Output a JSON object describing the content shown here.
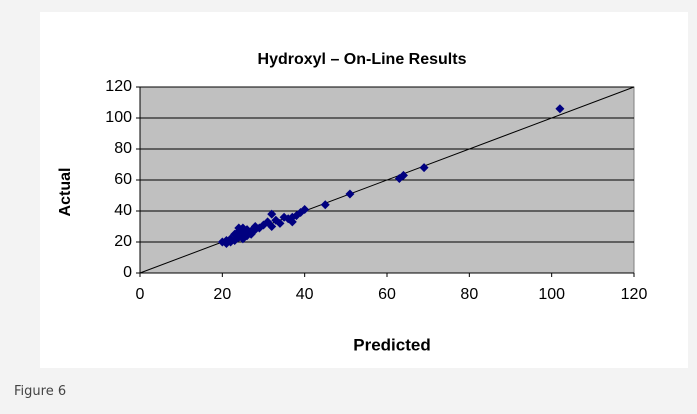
{
  "chart_data": {
    "type": "scatter",
    "title": "Hydroxyl – On-Line Results",
    "x_label": "Predicted",
    "y_label": "Actual",
    "series": [
      {
        "name": "Hydroxyl",
        "color": "#000080",
        "x": [
          102,
          69,
          64,
          63,
          51,
          45,
          40,
          39,
          38,
          37,
          36,
          35,
          34,
          33,
          32,
          32,
          31,
          30,
          29,
          28,
          27,
          27,
          26,
          26,
          25,
          25,
          24,
          24,
          23,
          23,
          22,
          22,
          21,
          21,
          20,
          25,
          28,
          37,
          24
        ],
        "values": [
          106,
          68,
          63,
          61,
          51,
          44,
          41,
          39,
          37,
          33,
          35,
          36,
          32,
          34,
          38,
          30,
          33,
          31,
          29,
          28,
          27,
          25,
          24,
          28,
          29,
          26,
          23,
          27,
          25,
          21,
          22,
          20,
          19,
          21,
          20,
          22,
          30,
          36,
          29
        ]
      }
    ],
    "xlim": [
      0,
      120
    ],
    "xticks": [
      0,
      20,
      40,
      60,
      80,
      100,
      120
    ],
    "ylim": [
      0,
      120
    ],
    "yticks": [
      0,
      20,
      40,
      60,
      80,
      100,
      120
    ],
    "grid": true,
    "plot_background": "#c0c0c0",
    "caption": "Figure 6"
  }
}
